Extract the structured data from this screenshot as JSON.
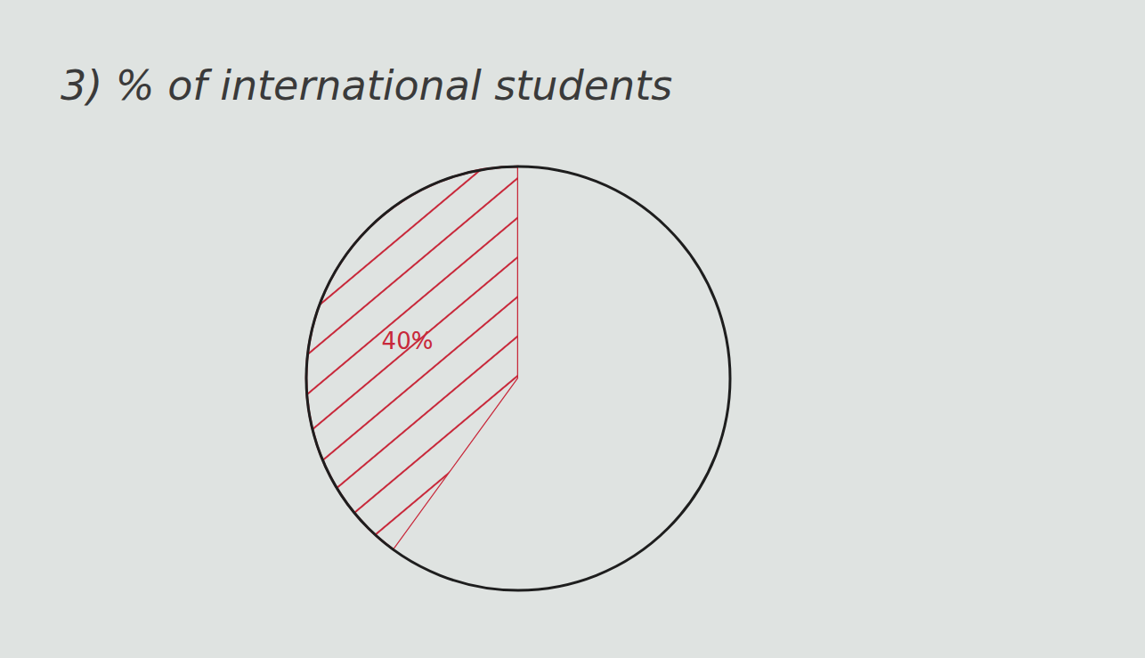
{
  "chart_data": {
    "type": "pie",
    "title": "3) % of international students",
    "values": [
      40,
      60
    ],
    "value_labels": [
      "40%",
      null
    ],
    "colors": [
      "#c8283a",
      "#dfe3e1"
    ],
    "data_labels": true
  }
}
